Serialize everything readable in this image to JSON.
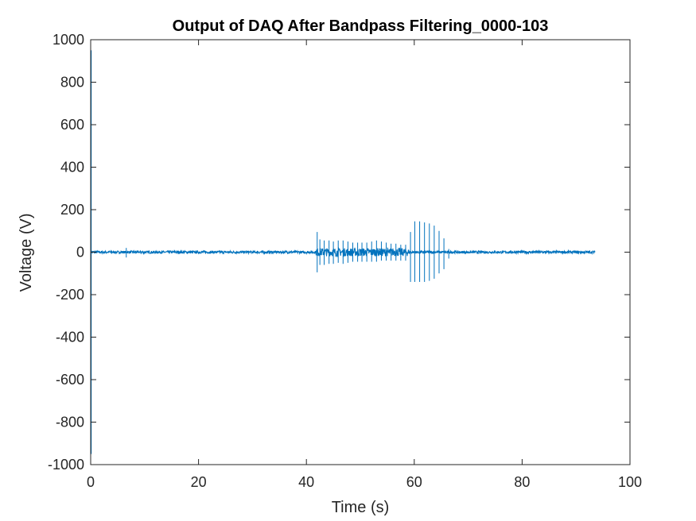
{
  "chart_data": {
    "type": "line",
    "title": "Output of DAQ After Bandpass Filtering_0000-103",
    "xlabel": "Time (s)",
    "ylabel": "Voltage (V)",
    "xlim": [
      0,
      100
    ],
    "ylim": [
      -1000,
      1000
    ],
    "xticks": [
      0,
      20,
      40,
      60,
      80,
      100
    ],
    "yticks": [
      -1000,
      -800,
      -600,
      -400,
      -200,
      0,
      200,
      400,
      600,
      800,
      1000
    ],
    "xtick_labels": [
      "0",
      "20",
      "40",
      "60",
      "80",
      "100"
    ],
    "ytick_labels": [
      "-1000",
      "-800",
      "-600",
      "-400",
      "-200",
      "0",
      "200",
      "400",
      "600",
      "800",
      "1000"
    ],
    "grid": false,
    "line_color": "#0072BD",
    "series": [
      {
        "x_range": [
          0,
          93.5
        ],
        "baseline_noise": 6,
        "spikes": [
          {
            "x": 0.1,
            "y_max": 950,
            "y_min": -950
          },
          {
            "x": 6.6,
            "y_max": 20,
            "y_min": -25
          },
          {
            "x": 42.0,
            "y_max": 95,
            "y_min": -95
          },
          {
            "x": 42.5,
            "y_max": 60,
            "y_min": -60
          },
          {
            "x": 43.3,
            "y_max": 55,
            "y_min": -60
          },
          {
            "x": 44.2,
            "y_max": 55,
            "y_min": -55
          },
          {
            "x": 45.0,
            "y_max": 50,
            "y_min": -55
          },
          {
            "x": 45.9,
            "y_max": 55,
            "y_min": -50
          },
          {
            "x": 46.8,
            "y_max": 55,
            "y_min": -55
          },
          {
            "x": 47.7,
            "y_max": 50,
            "y_min": -50
          },
          {
            "x": 48.6,
            "y_max": 45,
            "y_min": -45
          },
          {
            "x": 49.5,
            "y_max": 45,
            "y_min": -45
          },
          {
            "x": 50.3,
            "y_max": 45,
            "y_min": -45
          },
          {
            "x": 51.2,
            "y_max": 45,
            "y_min": -45
          },
          {
            "x": 52.1,
            "y_max": 50,
            "y_min": -45
          },
          {
            "x": 53.0,
            "y_max": 55,
            "y_min": -45
          },
          {
            "x": 53.9,
            "y_max": 50,
            "y_min": -40
          },
          {
            "x": 54.8,
            "y_max": 45,
            "y_min": -40
          },
          {
            "x": 55.7,
            "y_max": 40,
            "y_min": -40
          },
          {
            "x": 56.6,
            "y_max": 40,
            "y_min": -40
          },
          {
            "x": 57.5,
            "y_max": 35,
            "y_min": -40
          },
          {
            "x": 58.4,
            "y_max": 35,
            "y_min": -40
          },
          {
            "x": 59.3,
            "y_max": 95,
            "y_min": -140
          },
          {
            "x": 60.1,
            "y_max": 145,
            "y_min": -140
          },
          {
            "x": 61.0,
            "y_max": 145,
            "y_min": -140
          },
          {
            "x": 61.9,
            "y_max": 140,
            "y_min": -140
          },
          {
            "x": 62.8,
            "y_max": 135,
            "y_min": -135
          },
          {
            "x": 63.7,
            "y_max": 125,
            "y_min": -125
          },
          {
            "x": 64.6,
            "y_max": 100,
            "y_min": -100
          },
          {
            "x": 65.5,
            "y_max": 65,
            "y_min": -80
          },
          {
            "x": 66.4,
            "y_max": 15,
            "y_min": -30
          }
        ]
      }
    ]
  }
}
